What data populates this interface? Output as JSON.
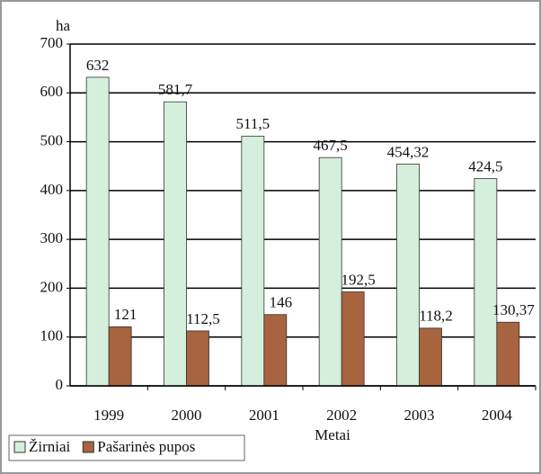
{
  "chart_data": {
    "type": "bar",
    "y_label": "ha",
    "x_label": "Metai",
    "categories": [
      "1999",
      "2000",
      "2001",
      "2002",
      "2003",
      "2004"
    ],
    "series": [
      {
        "name": "Žirniai",
        "color": "#d4f0dc",
        "values": [
          632,
          581.7,
          511.5,
          467.5,
          454.32,
          424.5
        ],
        "value_labels": [
          "632",
          "581,7",
          "511,5",
          "467,5",
          "454,32",
          "424,5"
        ]
      },
      {
        "name": "Pašarinės pupos",
        "color": "#a8633f",
        "values": [
          121,
          112.5,
          146,
          192.5,
          118.2,
          130.37
        ],
        "value_labels": [
          "121",
          "112,5",
          "146",
          "192,5",
          "118,2",
          "130,37"
        ]
      }
    ],
    "ylim": [
      0,
      700
    ],
    "yticks": [
      0,
      100,
      200,
      300,
      400,
      500,
      600,
      700
    ],
    "grid": true,
    "legend": "bottom-left"
  }
}
